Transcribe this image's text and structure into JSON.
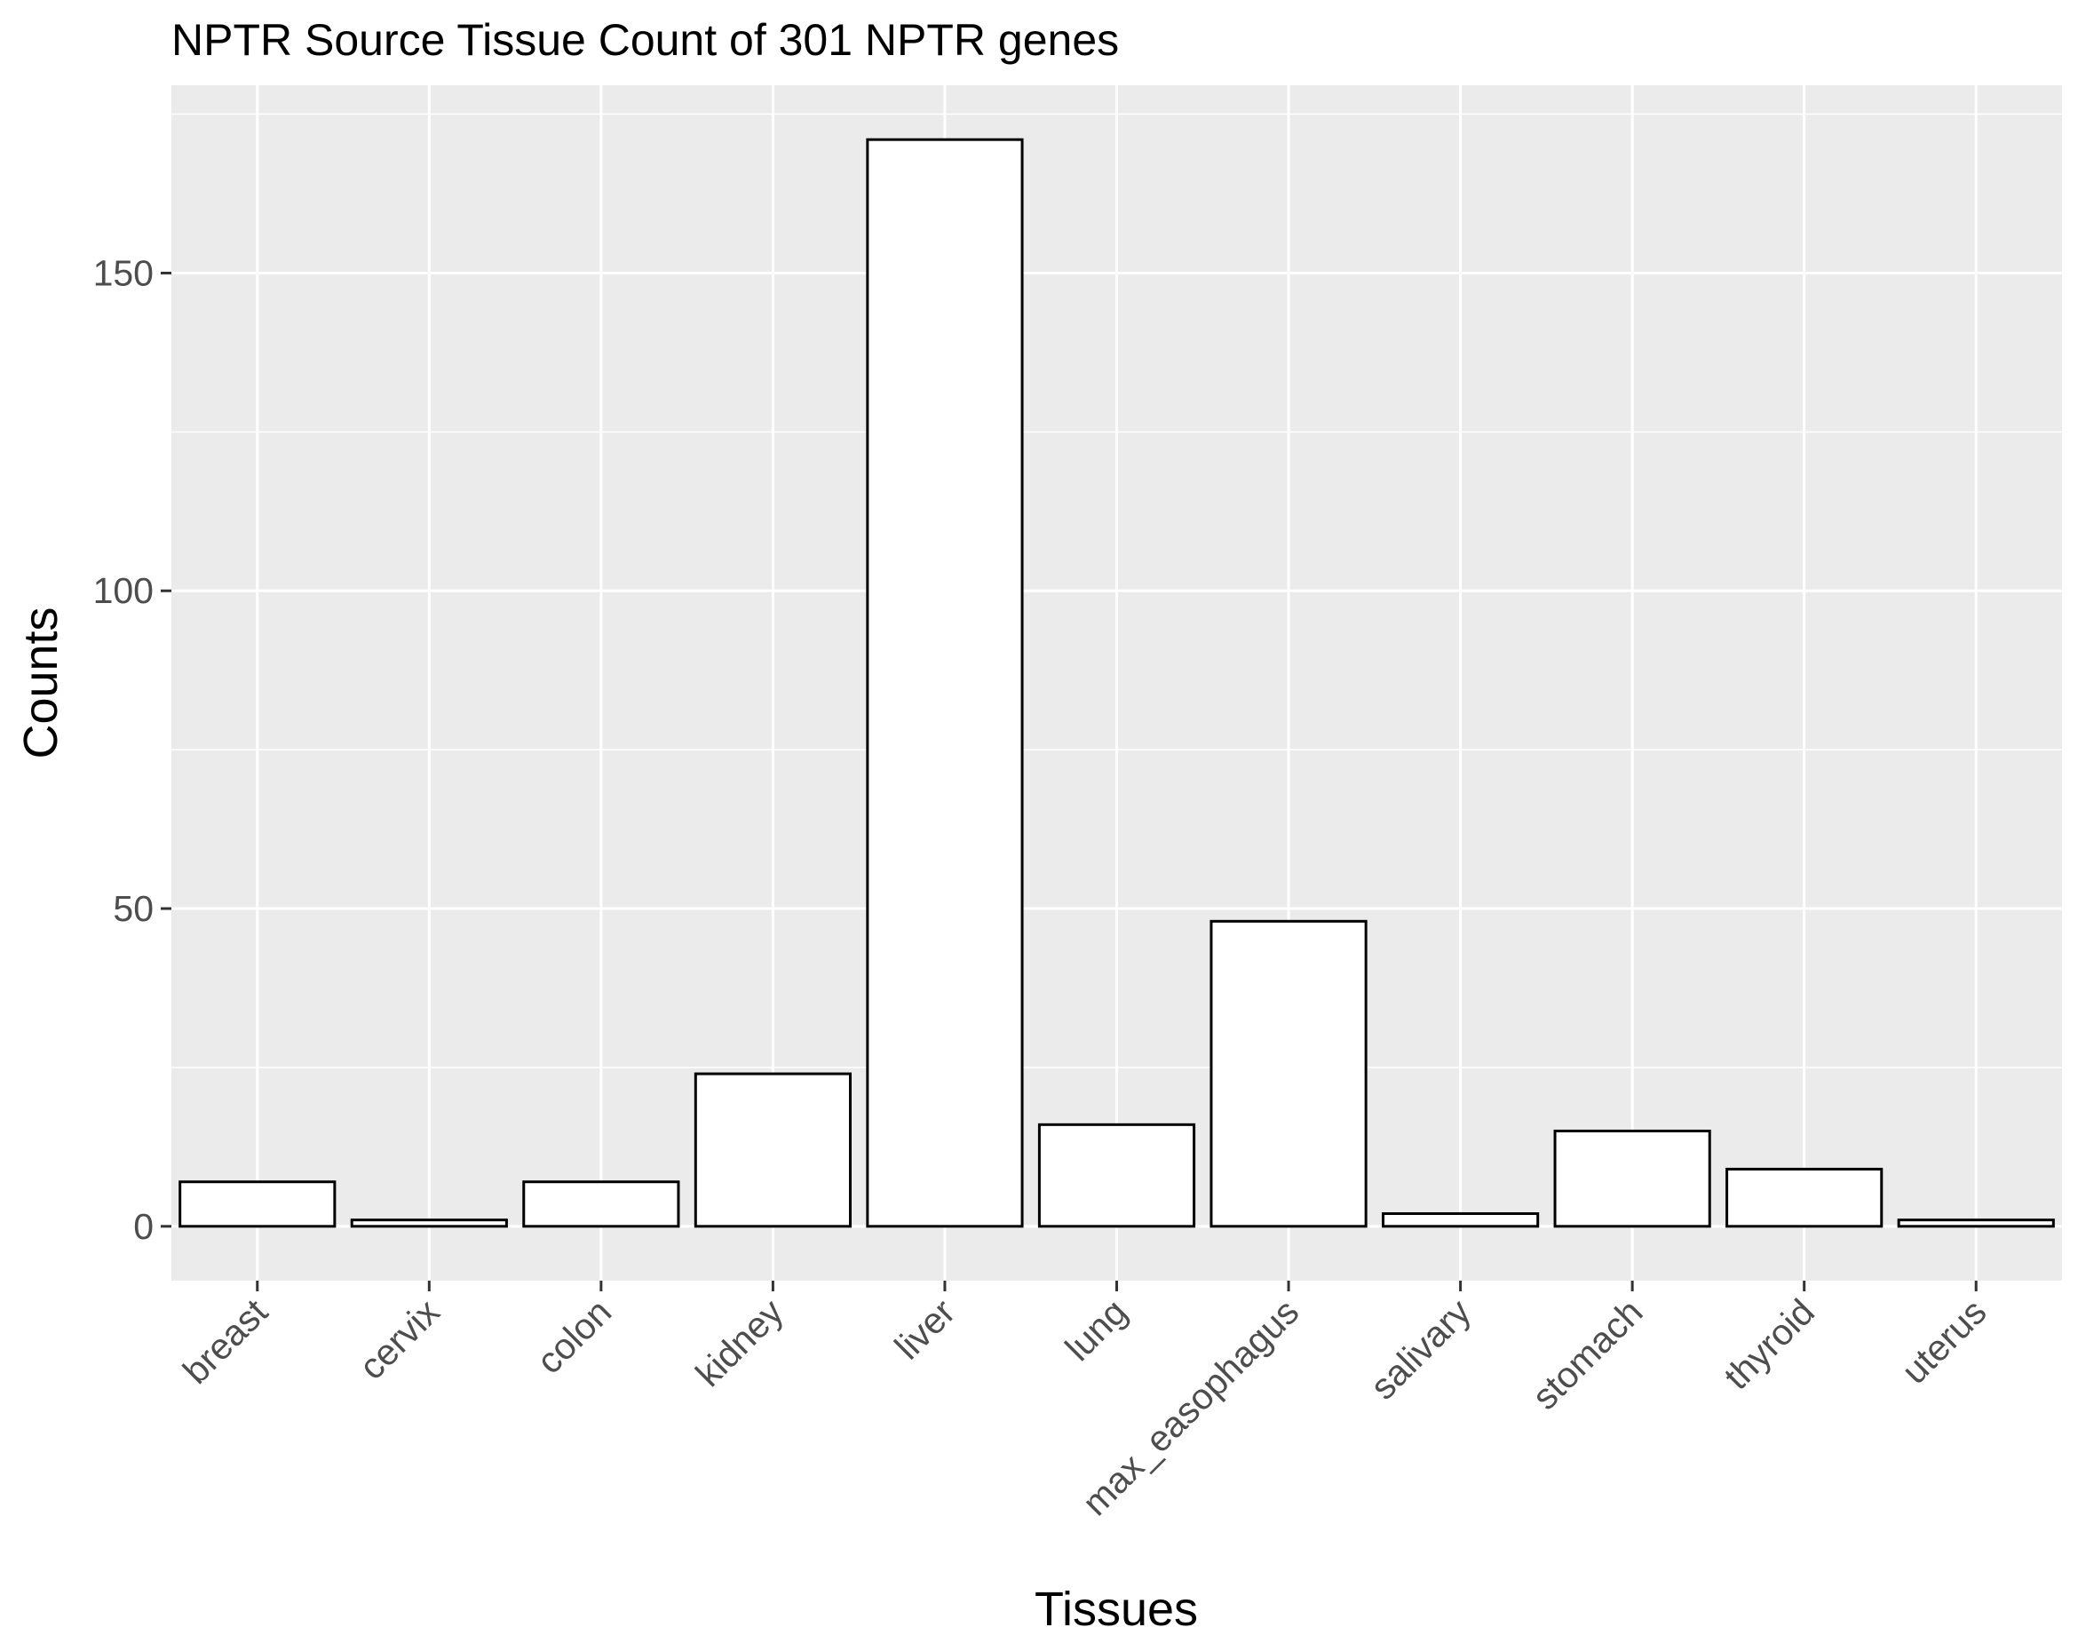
{
  "chart_data": {
    "type": "bar",
    "title": "NPTR Source Tissue Count of 301 NPTR genes",
    "xlabel": "Tissues",
    "ylabel": "Counts",
    "categories": [
      "breast",
      "cervix",
      "colon",
      "kidney",
      "liver",
      "lung",
      "max_easophagus",
      "salivary",
      "stomach",
      "thyroid",
      "uterus"
    ],
    "values": [
      7,
      1,
      7,
      24,
      171,
      16,
      48,
      2,
      15,
      9,
      1
    ],
    "ylim": [
      -8.55,
      179.55
    ],
    "yticks": [
      0,
      50,
      100,
      150
    ],
    "grid": true,
    "legend": "none",
    "colors": {
      "panel": "#ebebeb",
      "grid": "#ffffff",
      "bar_fill": "#ffffff",
      "bar_outline": "#000000",
      "tick_text": "#4d4d4d"
    }
  }
}
